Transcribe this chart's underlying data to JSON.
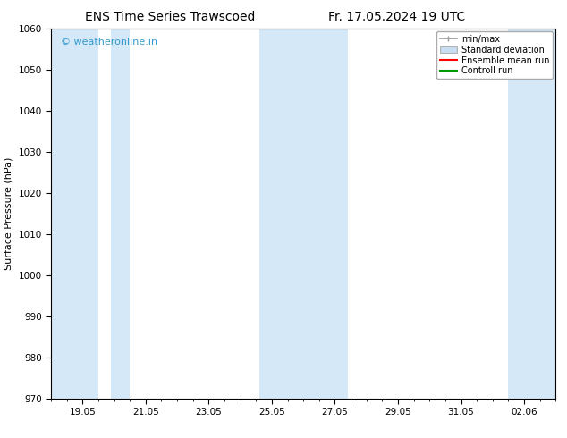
{
  "title_left": "ENS Time Series Trawscoed",
  "title_right": "Fr. 17.05.2024 19 UTC",
  "ylabel": "Surface Pressure (hPa)",
  "ylim": [
    970,
    1060
  ],
  "yticks": [
    970,
    980,
    990,
    1000,
    1010,
    1020,
    1030,
    1040,
    1050,
    1060
  ],
  "xlim": [
    0,
    16
  ],
  "xtick_labels": [
    "19.05",
    "21.05",
    "23.05",
    "25.05",
    "27.05",
    "29.05",
    "31.05",
    "02.06"
  ],
  "xtick_positions": [
    1,
    3,
    5,
    7,
    9,
    11,
    13,
    15
  ],
  "shaded_bands": [
    {
      "x_start": -0.1,
      "x_end": 1.5,
      "color": "#d4e8f8"
    },
    {
      "x_start": 1.9,
      "x_end": 2.5,
      "color": "#d4e8f8"
    },
    {
      "x_start": 6.6,
      "x_end": 9.4,
      "color": "#d4e8f8"
    },
    {
      "x_start": 14.5,
      "x_end": 16.1,
      "color": "#d4e8f8"
    }
  ],
  "watermark_text": "© weatheronline.in",
  "watermark_color": "#3399cc",
  "background_color": "#ffffff",
  "plot_bg_color": "#ffffff",
  "legend_entries": [
    {
      "label": "min/max",
      "color": "#999999",
      "lw": 1.2
    },
    {
      "label": "Standard deviation",
      "color": "#c8ddf0",
      "lw": 8
    },
    {
      "label": "Ensemble mean run",
      "color": "#ff0000",
      "lw": 1.5
    },
    {
      "label": "Controll run",
      "color": "#009900",
      "lw": 1.5
    }
  ],
  "title_fontsize": 10,
  "ylabel_fontsize": 8,
  "tick_fontsize": 7.5,
  "legend_fontsize": 7,
  "watermark_fontsize": 8
}
